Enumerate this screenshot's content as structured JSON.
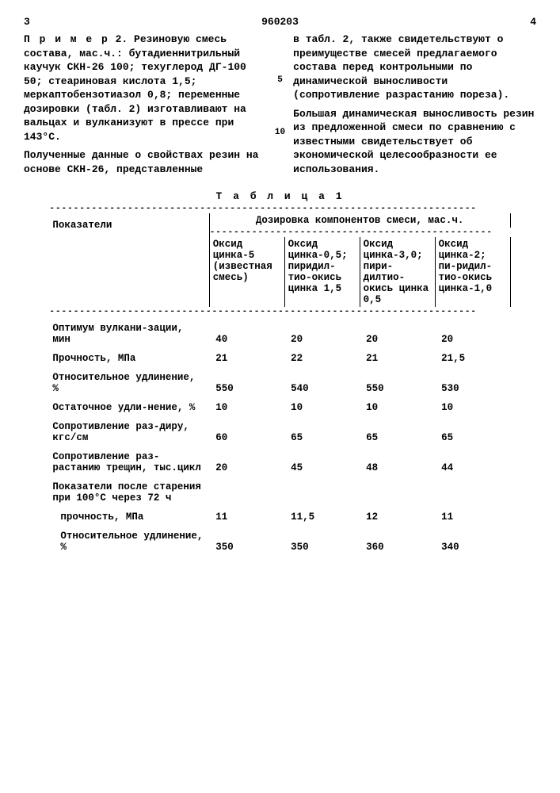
{
  "header": {
    "page_left": "3",
    "patent_number": "960203",
    "page_right": "4"
  },
  "left_col": {
    "para1_prefix": "П р и м е р",
    "para1": " 2. Резиновую смесь состава, мас.ч.: бутадиеннитрильный каучук СКН-26 100; техуглерод ДГ-100 50; стеариновая кислота 1,5; меркаптобензотиазол 0,8; переменные дозировки (табл. 2) изготавливают на вальцах и вулканизуют в прессе при 143°С.",
    "para2": "Полученные данные о свойствах резин на основе СКН-26, представленные"
  },
  "right_col": {
    "para1": "в табл. 2, также свидетельствуют о преимуществе смесей предлагаемого состава перед контрольными по динамической выносливости (сопротивление разрастанию пореза).",
    "para2": "Большая динамическая выносливость резин из предложенной смеси по сравнению с известными свидетельствует об экономической целесообразности ее использования."
  },
  "markers": {
    "m5": "5",
    "m10": "10"
  },
  "table": {
    "title": "Т а б л и ц а 1",
    "header_group": "Дозировка компонентов смеси, мас.ч.",
    "row_title": "Показатели",
    "cols": {
      "c1": "Оксид цинка-5 (известная смесь)",
      "c2": "Оксид цинка-0,5; пиридил-тио-окись цинка 1,5",
      "c3": "Оксид цинка-3,0; пири-дилтио-окись цинка 0,5",
      "c4": "Оксид цинка-2; пи-ридил-тио-окись цинка-1,0"
    },
    "rows": [
      {
        "label": "Оптимум вулкани-зации, мин",
        "v": [
          "40",
          "20",
          "20",
          "20"
        ]
      },
      {
        "label": "Прочность, МПа",
        "v": [
          "21",
          "22",
          "21",
          "21,5"
        ]
      },
      {
        "label": "Относительное удлинение, %",
        "v": [
          "550",
          "540",
          "550",
          "530"
        ]
      },
      {
        "label": "Остаточное удли-нение, %",
        "v": [
          "10",
          "10",
          "10",
          "10"
        ]
      },
      {
        "label": "Сопротивление раз-диру, кгс/см",
        "v": [
          "60",
          "65",
          "65",
          "65"
        ]
      },
      {
        "label": "Сопротивление раз-растанию трещин, тыс.цикл",
        "v": [
          "20",
          "45",
          "48",
          "44"
        ]
      },
      {
        "label": "Показатели после старения при 100°С через 72 ч",
        "v": [
          "",
          "",
          "",
          ""
        ]
      },
      {
        "label": "прочность, МПа",
        "indent": true,
        "v": [
          "11",
          "11,5",
          "12",
          "11"
        ]
      },
      {
        "label": "Относительное удлинение, %",
        "indent": true,
        "v": [
          "350",
          "350",
          "360",
          "340"
        ]
      }
    ]
  }
}
